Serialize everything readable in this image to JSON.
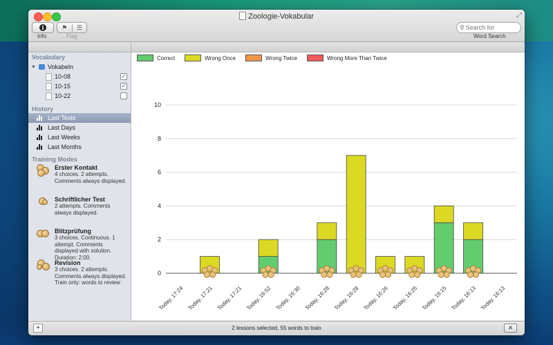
{
  "window": {
    "title": "Zoologie-Vokabular"
  },
  "toolbar": {
    "info_label": "Info",
    "flag_label": "Flag",
    "search_placeholder": "Search for",
    "search_label": "Word Search"
  },
  "sidebar": {
    "vocabulary_heading": "Vocabulary",
    "root_label": "Vokabeln",
    "lessons": [
      {
        "label": "10-08",
        "checked": true
      },
      {
        "label": "10-15",
        "checked": true
      },
      {
        "label": "10-22",
        "checked": false
      }
    ],
    "history_heading": "History",
    "history_items": [
      "Last Tests",
      "Last Days",
      "Last Weeks",
      "Last Months"
    ],
    "training_heading": "Training Modes",
    "modes": [
      {
        "title": "Erster Kontakt",
        "desc": "4 choices. 2 attempts. Comments always displayed."
      },
      {
        "title": "Schriftlicher Test",
        "desc": "2 attempts. Comments always displayed."
      },
      {
        "title": "Blitzprüfung",
        "desc": "3 choices. Continuous. 1 attempt. Comments displayed with solution. Duration: 2:00."
      },
      {
        "title": "Revision",
        "desc": "3 choices. 2 attempts. Comments always displayed. Train only: words to review"
      }
    ]
  },
  "status": {
    "text": "2 lessons selected, 55 words to train"
  },
  "colors": {
    "correct": "#63cc6f",
    "wrong_once": "#dcd925",
    "wrong_twice": "#f0954b",
    "wrong_more": "#ee5a5f"
  },
  "chart_data": {
    "type": "bar",
    "stacked": true,
    "legend": [
      "Correct",
      "Wrong Once",
      "Wrong Twice",
      "Wrong More Than Twice"
    ],
    "categories": [
      "Today, 17:24",
      "Today, 17:21",
      "Today, 17:21",
      "Today, 16:52",
      "Today, 16:30",
      "Today, 16:28",
      "Today, 16:28",
      "Today, 16:26",
      "Today, 16:25",
      "Today, 16:15",
      "Today, 16:13",
      "Today, 16:13"
    ],
    "series": [
      {
        "name": "Correct",
        "values": [
          0,
          0,
          0,
          1,
          0,
          2,
          0,
          0,
          0,
          3,
          2,
          0
        ]
      },
      {
        "name": "Wrong Once",
        "values": [
          0,
          1,
          0,
          1,
          0,
          1,
          7,
          1,
          1,
          1,
          1,
          0
        ]
      },
      {
        "name": "Wrong Twice",
        "values": [
          0,
          0,
          0,
          0,
          0,
          0,
          0,
          0,
          0,
          0,
          0,
          0
        ]
      },
      {
        "name": "Wrong More Than Twice",
        "values": [
          0,
          0,
          0,
          0,
          0,
          0,
          0,
          0,
          0,
          0,
          0,
          0
        ]
      }
    ],
    "ylim": [
      0,
      10
    ],
    "yticks": [
      0,
      2,
      4,
      6,
      8,
      10
    ],
    "grid": true
  }
}
